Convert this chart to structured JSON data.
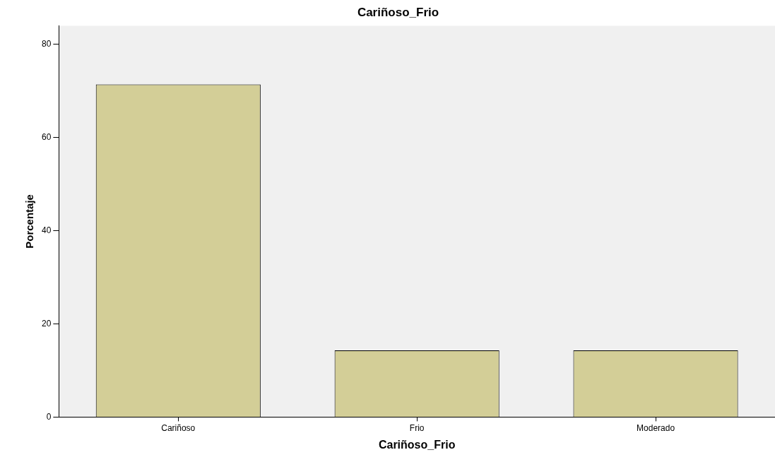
{
  "chart_data": {
    "type": "bar",
    "title": "Cariñoso_Frio",
    "xlabel": "Cariñoso_Frio",
    "ylabel": "Porcentaje",
    "categories": [
      "Cariñoso",
      "Frio",
      "Moderado"
    ],
    "values": [
      71.4,
      14.3,
      14.3
    ],
    "color": "#d3ce97",
    "ylim": [
      0,
      84
    ],
    "yticks": [
      0,
      20,
      40,
      60,
      80
    ],
    "grid": false,
    "legend": false
  }
}
